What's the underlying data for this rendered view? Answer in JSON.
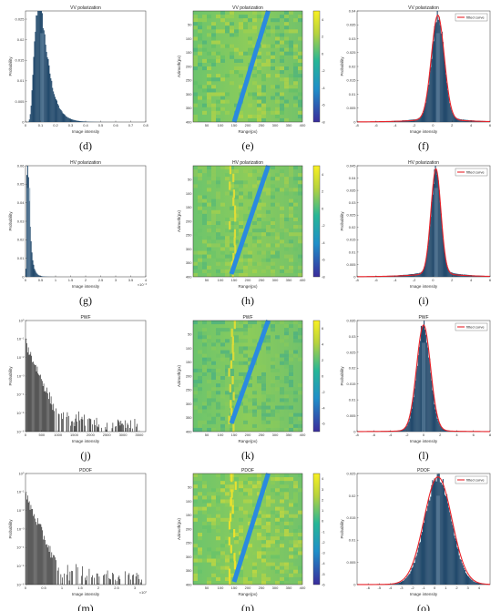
{
  "colors": {
    "hist_dark": "#1a3550",
    "hist_mid": "#234a6c",
    "hist_light": "#6a8aa5",
    "fit": "#e8232a",
    "stripe": "#2a8ae0"
  },
  "chart_data": [
    {
      "panel": "(d)",
      "type": "bar",
      "title": "VV polarization",
      "xlabel": "Image intensity",
      "ylabel": "Probability",
      "xlim": [
        0,
        0.8
      ],
      "ylim": [
        0,
        0.027
      ],
      "xticks": [
        "0",
        "0.1",
        "0.2",
        "0.3",
        "0.4",
        "0.5",
        "0.6",
        "0.7",
        "0.8"
      ],
      "yticks": [
        "0",
        "0.005",
        "0.01",
        "0.015",
        "0.02",
        "0.025"
      ],
      "shape": {
        "kind": "lognormal",
        "mode": 0.11,
        "peak": 0.026,
        "sigma": 0.45
      }
    },
    {
      "panel": "(e)",
      "type": "heatmap",
      "title": "VV polarization",
      "xlabel": "Range(px)",
      "ylabel": "Azimuth(px)",
      "xlim": [
        0,
        400
      ],
      "ylim": [
        0,
        400
      ],
      "xticks": [
        "50",
        "100",
        "150",
        "200",
        "250",
        "300",
        "350",
        "400"
      ],
      "yticks": [
        "50",
        "100",
        "150",
        "200",
        "250",
        "300",
        "350",
        "400"
      ],
      "colorbar": {
        "ticks": [
          "4",
          "2",
          "0",
          "-2",
          "-4",
          "-6",
          "-8"
        ],
        "range": [
          -8,
          5
        ]
      },
      "stripe": {
        "start": [
          150,
          400
        ],
        "end": [
          275,
          0
        ]
      },
      "style": "vv"
    },
    {
      "panel": "(f)",
      "type": "bar",
      "title": "VV polarization",
      "xlabel": "Image intensity",
      "ylabel": "Probability",
      "xlim": [
        -8,
        6
      ],
      "ylim": [
        0,
        0.04
      ],
      "xticks": [
        "-8",
        "-6",
        "-4",
        "-2",
        "0",
        "2",
        "4",
        "6"
      ],
      "yticks": [
        "0",
        "0.005",
        "0.01",
        "0.015",
        "0.02",
        "0.025",
        "0.03",
        "0.035",
        "0.04"
      ],
      "legend": "fitted curve",
      "shape": {
        "kind": "gauss",
        "mu": 0.5,
        "sigma": 0.65,
        "peak": 0.037,
        "tail": 0.0025
      }
    },
    {
      "panel": "(g)",
      "type": "bar",
      "title": "HV polarization",
      "xlabel": "Image intensity",
      "ylabel": "Probability",
      "xlim": [
        0,
        4
      ],
      "ylim": [
        0,
        0.06
      ],
      "x_exponent": "×10⁻³",
      "xticks": [
        "0",
        "0.5",
        "1",
        "1.5",
        "2",
        "2.5",
        "3",
        "3.5",
        "4"
      ],
      "yticks": [
        "0",
        "0.01",
        "0.02",
        "0.03",
        "0.04",
        "0.05",
        "0.06"
      ],
      "shape": {
        "kind": "lognormal",
        "mode": 0.1,
        "peak": 0.057,
        "sigma": 0.65
      }
    },
    {
      "panel": "(h)",
      "type": "heatmap",
      "title": "HV polarization",
      "xlabel": "Range(px)",
      "ylabel": "Azimuth(px)",
      "xlim": [
        0,
        400
      ],
      "ylim": [
        0,
        400
      ],
      "xticks": [
        "50",
        "100",
        "150",
        "200",
        "250",
        "300",
        "350",
        "400"
      ],
      "yticks": [
        "50",
        "100",
        "150",
        "200",
        "250",
        "300",
        "350",
        "400"
      ],
      "colorbar": {
        "ticks": [
          "4",
          "2",
          "0",
          "-2",
          "-4",
          "-6",
          "-8"
        ],
        "range": [
          -8,
          5
        ]
      },
      "stripe": {
        "start": [
          140,
          390
        ],
        "end": [
          275,
          0
        ]
      },
      "style": "hv"
    },
    {
      "panel": "(i)",
      "type": "bar",
      "title": "HV polarization",
      "xlabel": "Image intensity",
      "ylabel": "Probability",
      "xlim": [
        -8,
        6
      ],
      "ylim": [
        0,
        0.045
      ],
      "xticks": [
        "-8",
        "-6",
        "-4",
        "-2",
        "0",
        "2",
        "4",
        "6"
      ],
      "yticks": [
        "0",
        "0.005",
        "0.01",
        "0.015",
        "0.02",
        "0.025",
        "0.03",
        "0.035",
        "0.04",
        "0.045"
      ],
      "legend": "fitted curve",
      "shape": {
        "kind": "gauss",
        "mu": 0.3,
        "sigma": 0.5,
        "peak": 0.042,
        "tail": 0.003
      }
    },
    {
      "panel": "(j)",
      "type": "bar",
      "title": "PWF",
      "xlabel": "Image intensity",
      "ylabel": "Probability",
      "xlim": [
        0,
        3700
      ],
      "ylog": true,
      "xticks": [
        "0",
        "500",
        "1000",
        "1500",
        "2000",
        "2500",
        "3000",
        "3500"
      ],
      "yticks": [
        "10⁻⁶",
        "10⁻⁵",
        "10⁻⁴",
        "10⁻³",
        "10⁻²",
        "10⁻¹",
        "10⁰"
      ],
      "shape": {
        "kind": "decay",
        "tail_end": 3500
      }
    },
    {
      "panel": "(k)",
      "type": "heatmap",
      "title": "PWF",
      "xlabel": "Range(px)",
      "ylabel": "Azimuth(px)",
      "xlim": [
        0,
        400
      ],
      "ylim": [
        0,
        400
      ],
      "xticks": [
        "50",
        "100",
        "150",
        "200",
        "250",
        "300",
        "350",
        "400"
      ],
      "yticks": [
        "50",
        "100",
        "150",
        "200",
        "250",
        "300",
        "350",
        "400"
      ],
      "colorbar": {
        "ticks": [
          "6",
          "4",
          "2",
          "0",
          "-2",
          "-4",
          "-6"
        ],
        "range": [
          -7,
          7
        ]
      },
      "stripe": {
        "start": [
          140,
          370
        ],
        "end": [
          275,
          0
        ]
      },
      "style": "pwf"
    },
    {
      "panel": "(l)",
      "type": "bar",
      "title": "PWF",
      "xlabel": "Image intensity",
      "ylabel": "Probability",
      "xlim": [
        -8,
        8
      ],
      "ylim": [
        0,
        0.035
      ],
      "xticks": [
        "-8",
        "-6",
        "-4",
        "-2",
        "0",
        "2",
        "4",
        "6",
        "8"
      ],
      "yticks": [
        "0",
        "0.005",
        "0.01",
        "0.015",
        "0.02",
        "0.025",
        "0.03",
        "0.035"
      ],
      "legend": "fitted curve",
      "shape": {
        "kind": "gauss",
        "mu": 0.0,
        "sigma": 0.8,
        "peak": 0.033,
        "tail": 0.001
      }
    },
    {
      "panel": "(m)",
      "type": "bar",
      "title": "PDOF",
      "xlabel": "Image intensity",
      "ylabel": "Probability",
      "xlim": [
        0,
        3.3
      ],
      "ylog": true,
      "x_exponent": "×10⁷",
      "xticks": [
        "0",
        "0.5",
        "1",
        "1.5",
        "2",
        "2.5",
        "3"
      ],
      "yticks": [
        "10⁻⁶",
        "10⁻⁵",
        "10⁻⁴",
        "10⁻³",
        "10⁻²",
        "10⁻¹",
        "10⁰"
      ],
      "shape": {
        "kind": "decay",
        "tail_end": 3.2
      }
    },
    {
      "panel": "(n)",
      "type": "heatmap",
      "title": "PDOF",
      "xlabel": "Range(px)",
      "ylabel": "Azimuth(px)",
      "xlim": [
        0,
        400
      ],
      "ylim": [
        0,
        400
      ],
      "xticks": [
        "50",
        "100",
        "150",
        "200",
        "250",
        "300",
        "350",
        "400"
      ],
      "yticks": [
        "50",
        "100",
        "150",
        "200",
        "250",
        "300",
        "350",
        "400"
      ],
      "colorbar": {
        "ticks": [
          "4",
          "3",
          "2",
          "1",
          "0",
          "-1",
          "-2",
          "-3",
          "-4",
          "-5",
          "-6"
        ],
        "range": [
          -6,
          4.5
        ]
      },
      "stripe": {
        "start": [
          150,
          390
        ],
        "end": [
          275,
          0
        ]
      },
      "style": "pdof"
    },
    {
      "panel": "(o)",
      "type": "bar",
      "title": "PDOF",
      "xlabel": "Image intensity",
      "ylabel": "Probability",
      "xlim": [
        -7,
        5
      ],
      "ylim": [
        0,
        0.025
      ],
      "xticks": [
        "-6",
        "-5",
        "-4",
        "-3",
        "-2",
        "-1",
        "0",
        "1",
        "2",
        "3",
        "4"
      ],
      "yticks": [
        "0",
        "0.005",
        "0.01",
        "0.015",
        "0.02",
        "0.025"
      ],
      "legend": "fitted curve",
      "shape": {
        "kind": "gauss",
        "mu": 0.3,
        "sigma": 1.2,
        "peak": 0.024,
        "tail": 0.0004
      }
    }
  ]
}
